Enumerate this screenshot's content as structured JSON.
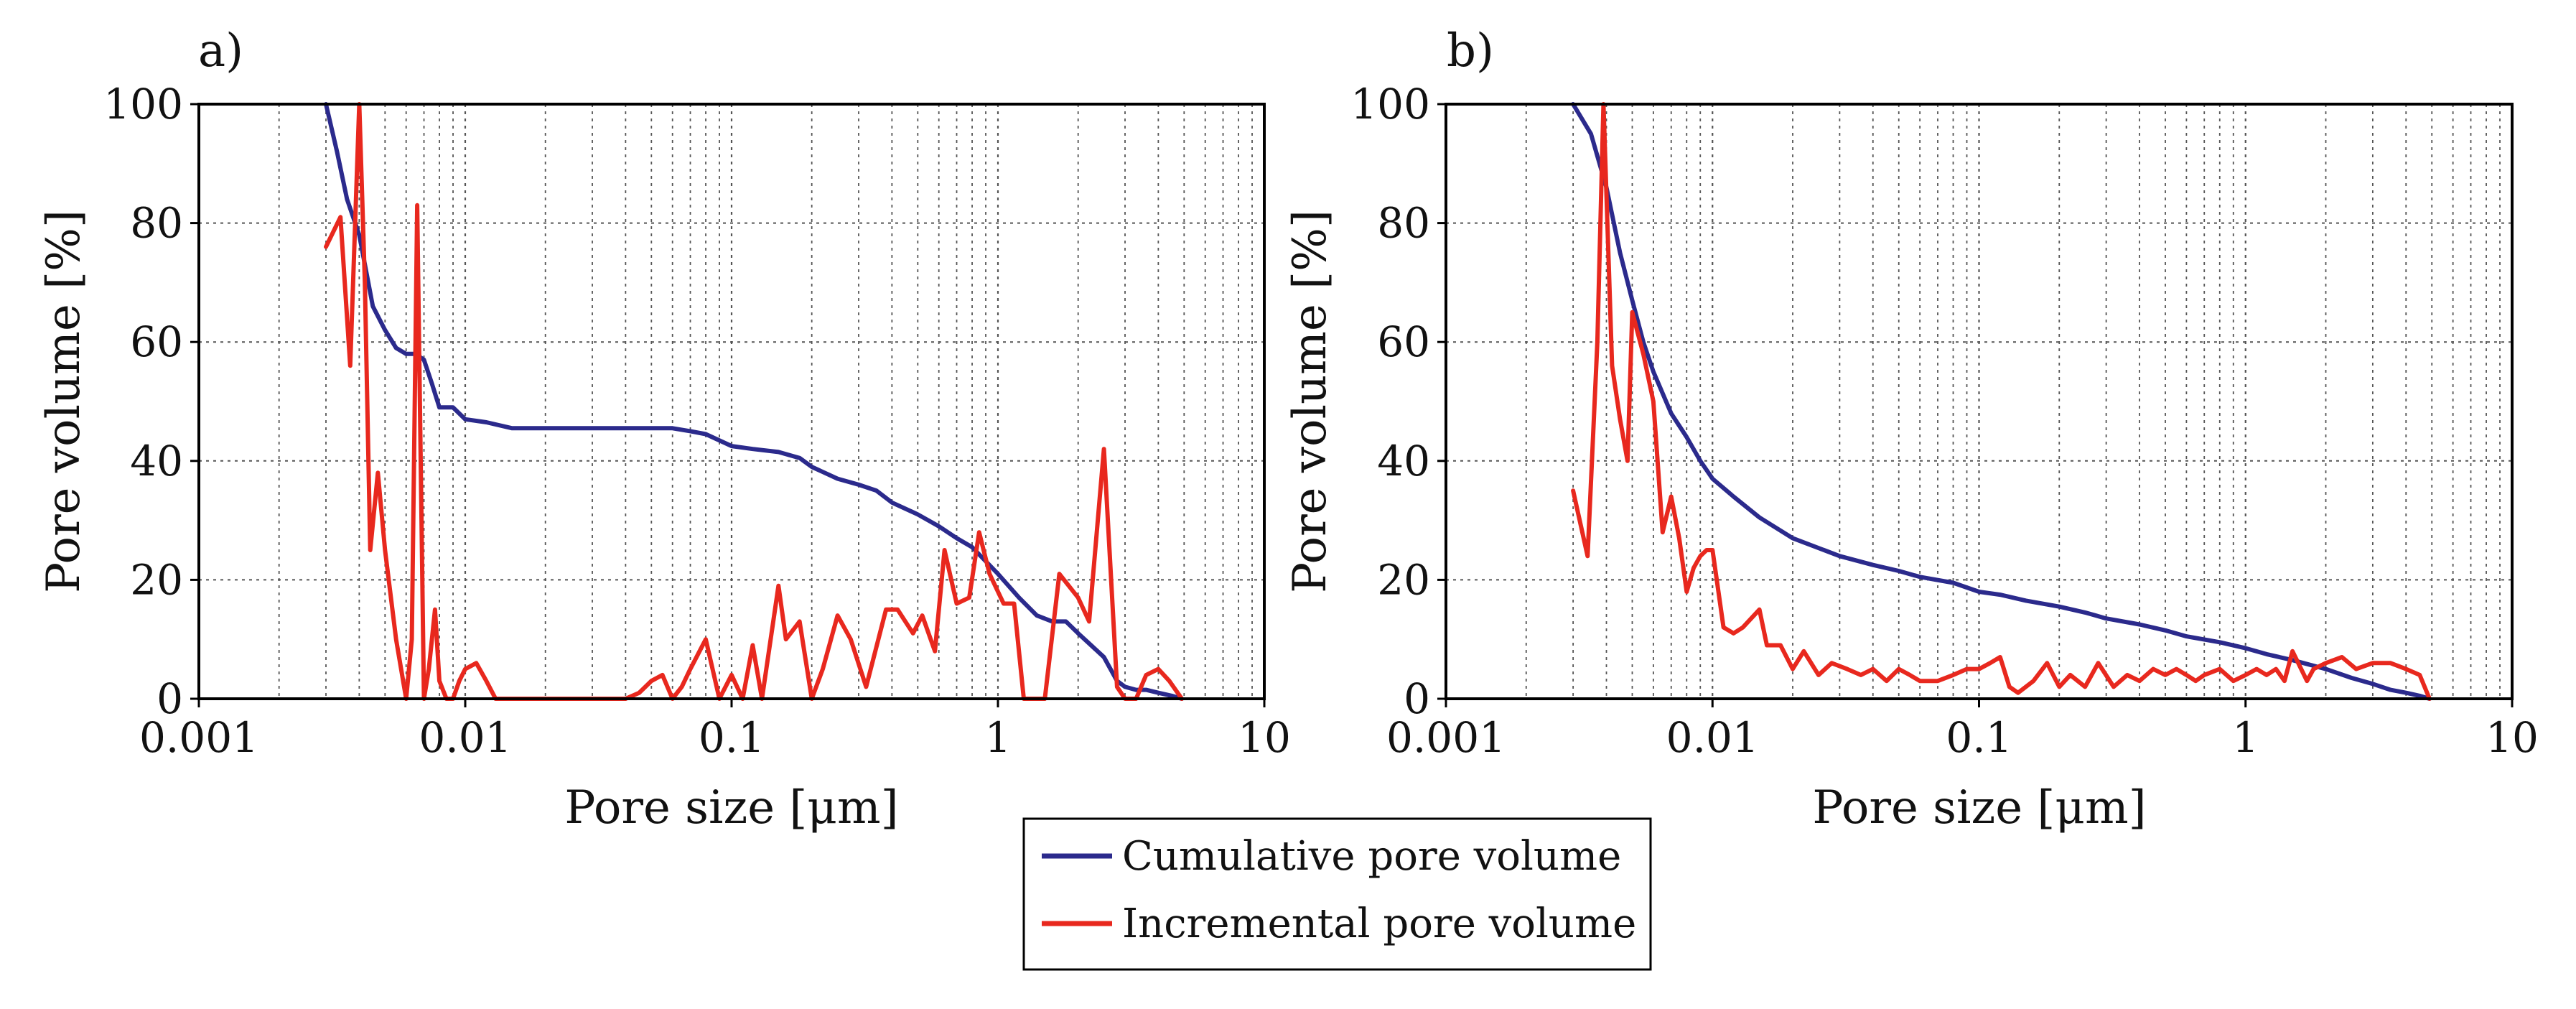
{
  "colors": {
    "cumulative": "#2b2a8c",
    "incremental": "#e8281e",
    "grid": "#555555",
    "frame": "#000000"
  },
  "legend": {
    "cumulative_label": "Cumulative pore volume",
    "incremental_label": "Incremental pore volume"
  },
  "chart_data": [
    {
      "panel": "a)",
      "type": "line",
      "title": "",
      "xlabel": "Pore size [μm]",
      "ylabel": "Pore volume [%]",
      "xscale": "log",
      "xlim": [
        0.001,
        10
      ],
      "ylim": [
        0,
        100
      ],
      "xticks": [
        0.001,
        0.01,
        0.1,
        1,
        10
      ],
      "xtick_labels": [
        "0.001",
        "0.01",
        "0.1",
        "1",
        "10"
      ],
      "yticks": [
        0,
        20,
        40,
        60,
        80,
        100
      ],
      "ytick_labels": [
        "0",
        "20",
        "40",
        "60",
        "80",
        "100"
      ],
      "grid": true,
      "series": [
        {
          "name": "Cumulative pore volume",
          "x": [
            0.003,
            0.0033,
            0.0036,
            0.004,
            0.0045,
            0.005,
            0.0055,
            0.006,
            0.0065,
            0.007,
            0.0075,
            0.008,
            0.009,
            0.01,
            0.012,
            0.015,
            0.02,
            0.03,
            0.04,
            0.05,
            0.06,
            0.07,
            0.08,
            0.1,
            0.12,
            0.15,
            0.18,
            0.2,
            0.25,
            0.3,
            0.35,
            0.4,
            0.5,
            0.6,
            0.7,
            0.8,
            1.0,
            1.2,
            1.4,
            1.6,
            1.8,
            2.0,
            2.5,
            2.8,
            3.0,
            3.3,
            3.6,
            4.0,
            4.5,
            4.9
          ],
          "y": [
            100,
            92,
            84,
            78,
            66,
            62,
            59,
            58,
            58,
            57,
            53,
            49,
            49,
            47,
            46.5,
            45.5,
            45.5,
            45.5,
            45.5,
            45.5,
            45.5,
            45,
            44.5,
            42.5,
            42,
            41.5,
            40.5,
            39,
            37,
            36,
            35,
            33,
            31,
            29,
            27,
            25.5,
            21,
            17,
            14,
            13,
            13,
            11,
            7,
            3,
            2,
            1.5,
            1.5,
            1,
            0.5,
            0
          ]
        },
        {
          "name": "Incremental pore volume",
          "x": [
            0.003,
            0.0034,
            0.0037,
            0.004,
            0.0042,
            0.0044,
            0.0047,
            0.005,
            0.0055,
            0.006,
            0.0063,
            0.0066,
            0.007,
            0.0073,
            0.0077,
            0.008,
            0.0085,
            0.009,
            0.0095,
            0.01,
            0.011,
            0.012,
            0.013,
            0.014,
            0.015,
            0.016,
            0.02,
            0.03,
            0.04,
            0.045,
            0.05,
            0.055,
            0.06,
            0.065,
            0.07,
            0.08,
            0.09,
            0.1,
            0.11,
            0.12,
            0.13,
            0.15,
            0.16,
            0.18,
            0.2,
            0.22,
            0.25,
            0.28,
            0.32,
            0.38,
            0.42,
            0.48,
            0.52,
            0.58,
            0.63,
            0.7,
            0.78,
            0.85,
            0.93,
            1.05,
            1.15,
            1.25,
            1.35,
            1.5,
            1.7,
            2.0,
            2.2,
            2.5,
            2.8,
            3.0,
            3.3,
            3.6,
            4.0,
            4.4,
            4.9
          ],
          "y": [
            76,
            81,
            56,
            100,
            70,
            25,
            38,
            25,
            10,
            0,
            10,
            83,
            0,
            5,
            15,
            3,
            0,
            0,
            3,
            5,
            6,
            3,
            0,
            0,
            0,
            0,
            0,
            0,
            0,
            1,
            3,
            4,
            0,
            2,
            5,
            10,
            0,
            4,
            0,
            9,
            0,
            19,
            10,
            13,
            0,
            5,
            14,
            10,
            2,
            15,
            15,
            11,
            14,
            8,
            25,
            16,
            17,
            28,
            21,
            16,
            16,
            0,
            0,
            0,
            21,
            17,
            13,
            42,
            2,
            0,
            0,
            4,
            5,
            3,
            0
          ]
        }
      ]
    },
    {
      "panel": "b)",
      "type": "line",
      "title": "",
      "xlabel": "Pore size [μm]",
      "ylabel": "Pore volume [%]",
      "xscale": "log",
      "xlim": [
        0.001,
        10
      ],
      "ylim": [
        0,
        100
      ],
      "xticks": [
        0.001,
        0.01,
        0.1,
        1,
        10
      ],
      "xtick_labels": [
        "0.001",
        "0.01",
        "0.1",
        "1",
        "10"
      ],
      "yticks": [
        0,
        20,
        40,
        60,
        80,
        100
      ],
      "ytick_labels": [
        "0",
        "20",
        "40",
        "60",
        "80",
        "100"
      ],
      "grid": true,
      "series": [
        {
          "name": "Cumulative pore volume",
          "x": [
            0.003,
            0.0035,
            0.004,
            0.0045,
            0.005,
            0.0055,
            0.006,
            0.007,
            0.008,
            0.009,
            0.01,
            0.012,
            0.015,
            0.02,
            0.03,
            0.04,
            0.05,
            0.06,
            0.08,
            0.1,
            0.12,
            0.15,
            0.2,
            0.25,
            0.3,
            0.4,
            0.5,
            0.6,
            0.8,
            1.0,
            1.2,
            1.5,
            2.0,
            2.5,
            3.0,
            3.5,
            4.0,
            4.5,
            4.9
          ],
          "y": [
            100,
            95,
            86,
            75,
            67,
            60,
            55,
            48,
            44,
            40,
            37,
            34,
            30.5,
            27,
            24,
            22.5,
            21.5,
            20.5,
            19.5,
            18,
            17.5,
            16.5,
            15.5,
            14.5,
            13.5,
            12.5,
            11.5,
            10.5,
            9.5,
            8.5,
            7.5,
            6.5,
            5,
            3.5,
            2.5,
            1.5,
            1,
            0.5,
            0
          ]
        },
        {
          "name": "Incremental pore volume",
          "x": [
            0.003,
            0.0034,
            0.0037,
            0.0039,
            0.0042,
            0.0045,
            0.0048,
            0.005,
            0.0055,
            0.006,
            0.0065,
            0.007,
            0.0075,
            0.008,
            0.0085,
            0.009,
            0.0095,
            0.01,
            0.011,
            0.012,
            0.013,
            0.015,
            0.016,
            0.018,
            0.02,
            0.022,
            0.025,
            0.028,
            0.032,
            0.036,
            0.04,
            0.045,
            0.05,
            0.055,
            0.06,
            0.065,
            0.07,
            0.08,
            0.09,
            0.1,
            0.11,
            0.12,
            0.13,
            0.14,
            0.16,
            0.18,
            0.2,
            0.22,
            0.25,
            0.28,
            0.32,
            0.36,
            0.4,
            0.45,
            0.5,
            0.55,
            0.6,
            0.65,
            0.7,
            0.8,
            0.9,
            1.0,
            1.1,
            1.2,
            1.3,
            1.4,
            1.5,
            1.7,
            1.8,
            2.0,
            2.3,
            2.6,
            3.0,
            3.5,
            4.0,
            4.5,
            4.9
          ],
          "y": [
            35,
            24,
            60,
            100,
            56,
            47,
            40,
            65,
            58,
            50,
            28,
            34,
            27,
            18,
            22,
            24,
            25,
            25,
            12,
            11,
            12,
            15,
            9,
            9,
            5,
            8,
            4,
            6,
            5,
            4,
            5,
            3,
            5,
            4,
            3,
            3,
            3,
            4,
            5,
            5,
            6,
            7,
            2,
            1,
            3,
            6,
            2,
            4,
            2,
            6,
            2,
            4,
            3,
            5,
            4,
            5,
            4,
            3,
            4,
            5,
            3,
            4,
            5,
            4,
            5,
            3,
            8,
            3,
            5,
            6,
            7,
            5,
            6,
            6,
            5,
            4,
            0
          ]
        }
      ]
    }
  ]
}
